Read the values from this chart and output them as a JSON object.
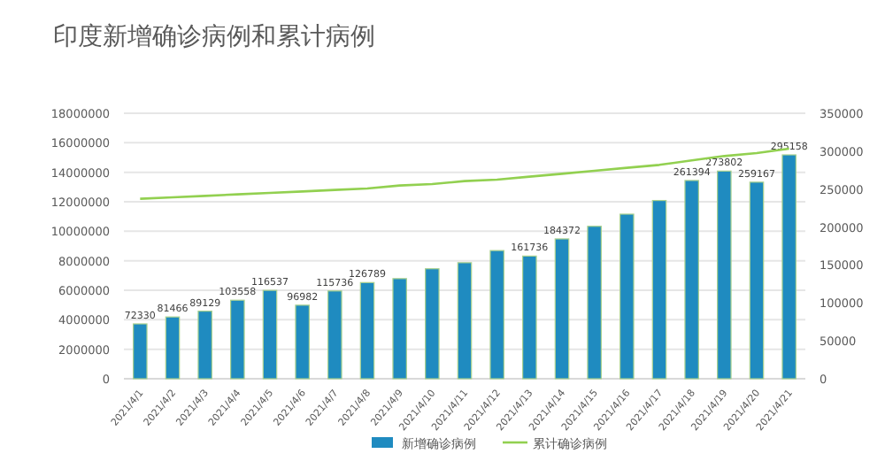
{
  "chart_data": {
    "type": "bar",
    "title": "印度新增确诊病例和累计病例",
    "categories": [
      "2021/4/1",
      "2021/4/2",
      "2021/4/3",
      "2021/4/4",
      "2021/4/5",
      "2021/4/6",
      "2021/4/7",
      "2021/4/8",
      "2021/4/9",
      "2021/4/10",
      "2021/4/11",
      "2021/4/12",
      "2021/4/13",
      "2021/4/14",
      "2021/4/15",
      "2021/4/16",
      "2021/4/17",
      "2021/4/18",
      "2021/4/19",
      "2021/4/20",
      "2021/4/21"
    ],
    "series": [
      {
        "name": "新增确诊病例",
        "axis": "y2",
        "color": "#1f8bc0",
        "values": [
          72330,
          81466,
          89129,
          103558,
          116537,
          96982,
          115736,
          126789,
          132000,
          145000,
          153000,
          169000,
          161736,
          184372,
          201000,
          217000,
          235000,
          261394,
          273802,
          259167,
          295158
        ],
        "value_labels": [
          "72330",
          "81466",
          "89129",
          "103558",
          "116537",
          "96982",
          "115736",
          "126789",
          null,
          null,
          null,
          null,
          "161736",
          "184372",
          null,
          null,
          null,
          "261394",
          "273802",
          "259167",
          "295158"
        ]
      },
      {
        "name": "累计确诊病例",
        "type": "line",
        "color": "#92d050",
        "values": [
          12200000,
          12300000,
          12400000,
          12500000,
          12600000,
          12700000,
          12800000,
          12900000,
          13100000,
          13200000,
          13400000,
          13500000,
          13700000,
          13900000,
          14100000,
          14300000,
          14500000,
          14800000,
          15100000,
          15300000,
          15600000
        ]
      }
    ],
    "ylim": [
      0,
      18000000
    ],
    "yticks": [
      0,
      2000000,
      4000000,
      6000000,
      8000000,
      10000000,
      12000000,
      14000000,
      16000000,
      18000000
    ],
    "y2lim": [
      0,
      350000
    ],
    "y2ticks": [
      0,
      50000,
      100000,
      150000,
      200000,
      250000,
      300000,
      350000
    ],
    "grid": "y",
    "legend": "bottom"
  }
}
